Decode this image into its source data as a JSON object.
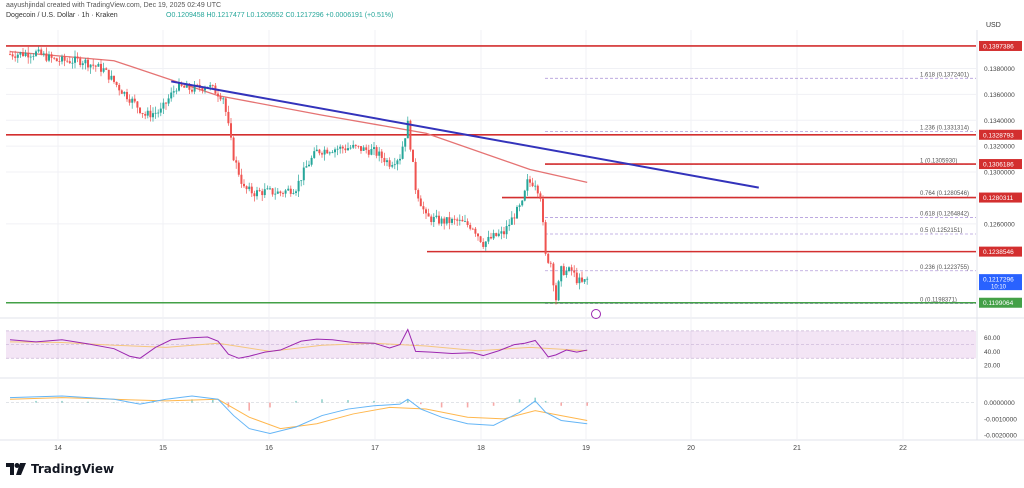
{
  "header": {
    "credit": "aayushjindal created with TradingView.com, Dec 19, 2025 02:49 UTC",
    "symbol": "Dogecoin / U.S. Dollar · 1h · Kraken",
    "ohlc": "O0.1209458 H0.1217477 L0.1205552 C0.1217296 +0.0006191 (+0.51%)",
    "currency": "USD"
  },
  "brand": {
    "name": "TradingView",
    "logo_icon": "tradingview-logo-icon"
  },
  "colors": {
    "up": "#26a69a",
    "down": "#ef5350",
    "sma": "#e57373",
    "trendline": "#3333bb",
    "resistance": "#d32f2f",
    "support": "#43a047",
    "fib": "#b39ddb",
    "rsi": "#9c27b0",
    "rsi_ma": "#f5c77e",
    "macd": "#64b5f6",
    "signal": "#ffb74d"
  },
  "chart_data": {
    "type": "candlestick",
    "timeframe": "1h",
    "x_ticks": [
      "14",
      "15",
      "16",
      "17",
      "18",
      "19",
      "20",
      "21",
      "22"
    ],
    "price_ticks": [
      "0.1380000",
      "0.1360000",
      "0.1340000",
      "0.1320000",
      "0.1300000",
      "0.1260000"
    ],
    "ylim": [
      0.1195,
      0.1402
    ],
    "path_anchors": [
      [
        0,
        0.1391
      ],
      [
        10,
        0.1392
      ],
      [
        18,
        0.1386
      ],
      [
        28,
        0.1386
      ],
      [
        36,
        0.1379
      ],
      [
        42,
        0.1365
      ],
      [
        48,
        0.1353
      ],
      [
        52,
        0.1344
      ],
      [
        58,
        0.1347
      ],
      [
        64,
        0.1366
      ],
      [
        70,
        0.1364
      ],
      [
        76,
        0.1367
      ],
      [
        82,
        0.1358
      ],
      [
        86,
        0.1312
      ],
      [
        90,
        0.1287
      ],
      [
        94,
        0.1284
      ],
      [
        98,
        0.1285
      ],
      [
        104,
        0.1284
      ],
      [
        110,
        0.1288
      ],
      [
        114,
        0.1304
      ],
      [
        118,
        0.1316
      ],
      [
        124,
        0.1318
      ],
      [
        132,
        0.1319
      ],
      [
        140,
        0.1316
      ],
      [
        146,
        0.1307
      ],
      [
        150,
        0.1312
      ],
      [
        153,
        0.1337
      ],
      [
        156,
        0.1288
      ],
      [
        160,
        0.1265
      ],
      [
        166,
        0.1262
      ],
      [
        172,
        0.1262
      ],
      [
        178,
        0.1258
      ],
      [
        182,
        0.1245
      ],
      [
        186,
        0.125
      ],
      [
        190,
        0.1253
      ],
      [
        194,
        0.1267
      ],
      [
        197,
        0.1275
      ],
      [
        199,
        0.1292
      ],
      [
        202,
        0.1292
      ],
      [
        204,
        0.1282
      ],
      [
        206,
        0.1235
      ],
      [
        208,
        0.123
      ],
      [
        210,
        0.1202
      ],
      [
        212,
        0.1224
      ],
      [
        214,
        0.1223
      ],
      [
        216,
        0.1224
      ],
      [
        218,
        0.1217
      ],
      [
        220,
        0.1214
      ],
      [
        222,
        0.1217
      ]
    ],
    "sma": [
      [
        0,
        0.1393
      ],
      [
        40,
        0.1386
      ],
      [
        80,
        0.1359
      ],
      [
        120,
        0.1344
      ],
      [
        160,
        0.133
      ],
      [
        200,
        0.1302
      ],
      [
        222,
        0.1292
      ]
    ],
    "trendline": [
      [
        62,
        0.137
      ],
      [
        288,
        0.1288
      ]
    ],
    "horizontal_levels": [
      {
        "label": "0.1397386",
        "value": 0.1397386,
        "kind": "resistance"
      },
      {
        "label": "0.1328793",
        "value": 0.1328793,
        "kind": "resistance"
      },
      {
        "label": "0.1306186",
        "value": 0.1306186,
        "kind": "resistance"
      },
      {
        "label": "0.1280311",
        "value": 0.1280311,
        "kind": "resistance"
      },
      {
        "label": "0.1238546",
        "value": 0.1238546,
        "kind": "resistance"
      },
      {
        "label": "0.1199064",
        "value": 0.1199064,
        "kind": "support"
      }
    ],
    "current_price": {
      "label": "0.1217296",
      "value": 0.1217296,
      "countdown": "10:10"
    },
    "fib_levels": [
      {
        "label": "1.618 (0.1372401)",
        "value": 0.1372401
      },
      {
        "label": "1.236 (0.1331314)",
        "value": 0.1331314
      },
      {
        "label": "1 (0.1305930)",
        "value": 0.130593
      },
      {
        "label": "0.764 (0.1280546)",
        "value": 0.1280546
      },
      {
        "label": "0.618 (0.1264842)",
        "value": 0.1264842
      },
      {
        "label": "0.5 (0.1252151)",
        "value": 0.1252151
      },
      {
        "label": "0.236 (0.1223755)",
        "value": 0.1223755
      },
      {
        "label": "0 (0.1198371)",
        "value": 0.1198371
      }
    ],
    "rsi": {
      "ticks": [
        "60.00",
        "40.00",
        "20.00"
      ],
      "ylim": [
        10,
        80
      ],
      "band": [
        30,
        70
      ],
      "series": [
        [
          0,
          57
        ],
        [
          10,
          54
        ],
        [
          20,
          57
        ],
        [
          30,
          51
        ],
        [
          40,
          44
        ],
        [
          46,
          33
        ],
        [
          50,
          30
        ],
        [
          56,
          46
        ],
        [
          62,
          57
        ],
        [
          70,
          60
        ],
        [
          76,
          61
        ],
        [
          80,
          55
        ],
        [
          84,
          36
        ],
        [
          88,
          30
        ],
        [
          92,
          33
        ],
        [
          98,
          39
        ],
        [
          104,
          42
        ],
        [
          112,
          55
        ],
        [
          118,
          58
        ],
        [
          124,
          57
        ],
        [
          132,
          53
        ],
        [
          140,
          52
        ],
        [
          146,
          45
        ],
        [
          150,
          50
        ],
        [
          153,
          72
        ],
        [
          156,
          40
        ],
        [
          162,
          39
        ],
        [
          170,
          37
        ],
        [
          178,
          38
        ],
        [
          182,
          34
        ],
        [
          188,
          41
        ],
        [
          194,
          50
        ],
        [
          198,
          52
        ],
        [
          202,
          56
        ],
        [
          205,
          42
        ],
        [
          207,
          32
        ],
        [
          210,
          35
        ],
        [
          214,
          42
        ],
        [
          218,
          39
        ],
        [
          222,
          42
        ]
      ],
      "ma": [
        [
          0,
          54
        ],
        [
          20,
          53
        ],
        [
          40,
          49
        ],
        [
          60,
          46
        ],
        [
          80,
          52
        ],
        [
          100,
          40
        ],
        [
          120,
          49
        ],
        [
          140,
          52
        ],
        [
          160,
          48
        ],
        [
          180,
          41
        ],
        [
          200,
          46
        ],
        [
          222,
          41
        ]
      ]
    },
    "macd": {
      "ticks": [
        "0.0000000",
        "-0.0010000",
        "-0.0020000"
      ],
      "ylim": [
        -0.0023,
        0.0012
      ],
      "series": [
        [
          0,
          0.0003
        ],
        [
          20,
          0.0004
        ],
        [
          40,
          0.0002
        ],
        [
          50,
          -0.0001
        ],
        [
          60,
          0.0002
        ],
        [
          70,
          0.0004
        ],
        [
          80,
          0.0002
        ],
        [
          86,
          -0.0008
        ],
        [
          92,
          -0.0016
        ],
        [
          100,
          -0.0019
        ],
        [
          110,
          -0.0015
        ],
        [
          120,
          -0.0008
        ],
        [
          130,
          -0.0004
        ],
        [
          140,
          -0.0002
        ],
        [
          150,
          -0.0001
        ],
        [
          153,
          0.0002
        ],
        [
          158,
          -0.0004
        ],
        [
          166,
          -0.0009
        ],
        [
          176,
          -0.0013
        ],
        [
          186,
          -0.0014
        ],
        [
          196,
          -0.0006
        ],
        [
          202,
          0.0001
        ],
        [
          206,
          -0.0006
        ],
        [
          212,
          -0.0011
        ],
        [
          222,
          -0.0013
        ]
      ],
      "signal": [
        [
          0,
          0.0002
        ],
        [
          20,
          0.0003
        ],
        [
          40,
          0.0002
        ],
        [
          60,
          0.0001
        ],
        [
          80,
          0.0002
        ],
        [
          92,
          -0.0009
        ],
        [
          104,
          -0.0016
        ],
        [
          118,
          -0.0013
        ],
        [
          132,
          -0.0007
        ],
        [
          146,
          -0.0003
        ],
        [
          160,
          -0.0004
        ],
        [
          176,
          -0.0009
        ],
        [
          190,
          -0.001
        ],
        [
          202,
          -0.0005
        ],
        [
          212,
          -0.0008
        ],
        [
          222,
          -0.0011
        ]
      ],
      "hist": [
        [
          10,
          0.0001
        ],
        [
          20,
          0.0001
        ],
        [
          30,
          5e-05
        ],
        [
          40,
          0.0
        ],
        [
          55,
          0.0001
        ],
        [
          70,
          0.0002
        ],
        [
          78,
          0.0002
        ],
        [
          84,
          -0.0003
        ],
        [
          92,
          -0.0005
        ],
        [
          100,
          -0.0003
        ],
        [
          110,
          0.0001
        ],
        [
          120,
          0.0002
        ],
        [
          130,
          0.00015
        ],
        [
          140,
          0.0001
        ],
        [
          150,
          5e-05
        ],
        [
          153,
          0.0002
        ],
        [
          158,
          -0.0001
        ],
        [
          166,
          -0.0003
        ],
        [
          176,
          -0.0003
        ],
        [
          186,
          -0.0002
        ],
        [
          196,
          0.0002
        ],
        [
          202,
          0.0003
        ],
        [
          206,
          0.0001
        ],
        [
          212,
          -0.0002
        ],
        [
          222,
          -0.0002
        ]
      ]
    }
  }
}
